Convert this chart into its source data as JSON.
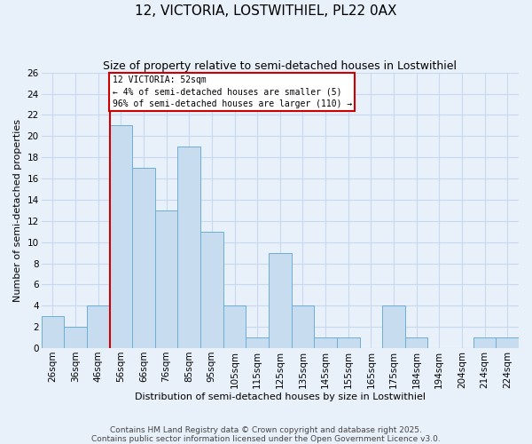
{
  "title": "12, VICTORIA, LOSTWITHIEL, PL22 0AX",
  "subtitle": "Size of property relative to semi-detached houses in Lostwithiel",
  "xlabel": "Distribution of semi-detached houses by size in Lostwithiel",
  "ylabel": "Number of semi-detached properties",
  "bin_labels": [
    "26sqm",
    "36sqm",
    "46sqm",
    "56sqm",
    "66sqm",
    "76sqm",
    "85sqm",
    "95sqm",
    "105sqm",
    "115sqm",
    "125sqm",
    "135sqm",
    "145sqm",
    "155sqm",
    "165sqm",
    "175sqm",
    "184sqm",
    "194sqm",
    "204sqm",
    "214sqm",
    "224sqm"
  ],
  "bin_values": [
    3,
    2,
    4,
    21,
    17,
    13,
    19,
    11,
    4,
    1,
    9,
    4,
    1,
    1,
    0,
    4,
    1,
    0,
    0,
    1,
    1
  ],
  "bar_color": "#c8dcf0",
  "bar_edge_color": "#6aaed6",
  "vline_index": 3,
  "pct_smaller": 4,
  "pct_larger": 96,
  "count_smaller": 5,
  "count_larger": 110,
  "annotation_box_facecolor": "#ffffff",
  "annotation_box_edgecolor": "#cc0000",
  "vline_color": "#cc0000",
  "grid_color": "#c8d8ee",
  "background_color": "#e8f0fa",
  "footer_line1": "Contains HM Land Registry data © Crown copyright and database right 2025.",
  "footer_line2": "Contains public sector information licensed under the Open Government Licence v3.0.",
  "ylim": [
    0,
    26
  ],
  "yticks": [
    0,
    2,
    4,
    6,
    8,
    10,
    12,
    14,
    16,
    18,
    20,
    22,
    24,
    26
  ],
  "title_fontsize": 11,
  "subtitle_fontsize": 9,
  "xlabel_fontsize": 8,
  "ylabel_fontsize": 8,
  "tick_fontsize": 7.5,
  "footer_fontsize": 6.5
}
